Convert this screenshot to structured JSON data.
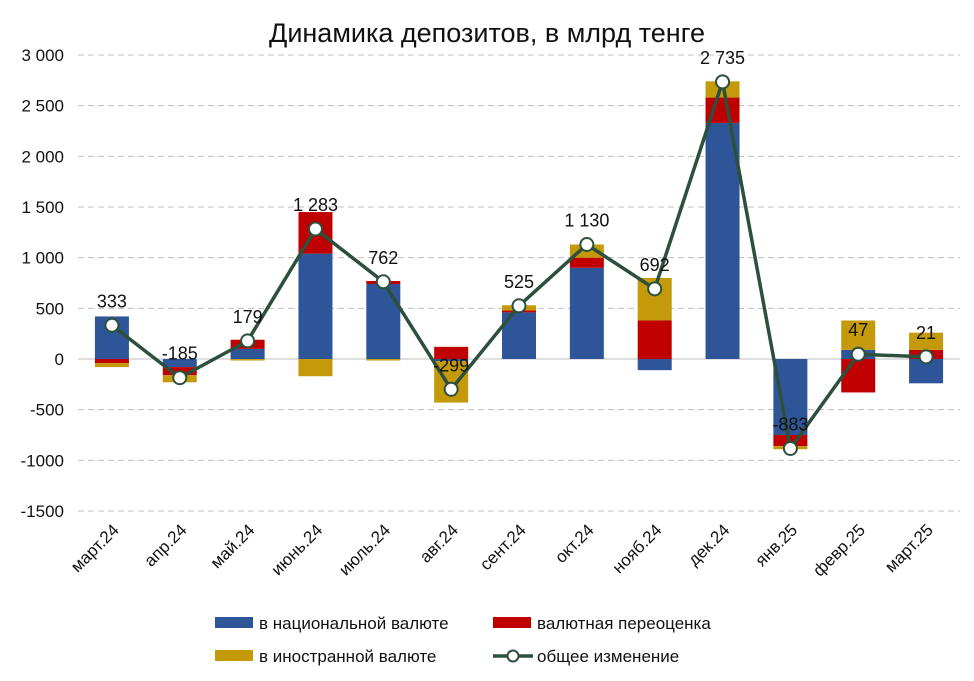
{
  "chart_data": {
    "type": "bar",
    "title": "Динамика депозитов, в млрд тенге",
    "xlabel": "",
    "ylabel": "",
    "ylim": [
      -1500,
      3000
    ],
    "yticks": [
      3000,
      2500,
      2000,
      1500,
      1000,
      500,
      0,
      -500,
      -1000,
      -1500
    ],
    "ytick_labels": [
      "3 000",
      "2 500",
      "2 000",
      "1 500",
      "1 000",
      "500",
      "0",
      "-500",
      "-1000",
      "-1500"
    ],
    "grid": true,
    "legend_position": "bottom",
    "categories": [
      "март.24",
      "апр.24",
      "май.24",
      "июнь.24",
      "июль.24",
      "авг.24",
      "сент.24",
      "окт.24",
      "нояб.24",
      "дек.24",
      "янв.25",
      "февр.25",
      "март.25"
    ],
    "series": [
      {
        "name": "в национальной валюте",
        "type": "bar",
        "color": "#2E5597",
        "values": [
          420,
          -80,
          100,
          1040,
          740,
          -20,
          460,
          900,
          -110,
          2330,
          -750,
          90,
          -240
        ]
      },
      {
        "name": "валютная переоценка",
        "type": "bar",
        "color": "#C00000",
        "values": [
          -40,
          -80,
          90,
          410,
          30,
          120,
          20,
          100,
          380,
          250,
          -110,
          -330,
          90
        ]
      },
      {
        "name": "в иностранной валюте",
        "type": "bar",
        "color": "#C49A0B",
        "values": [
          -40,
          -70,
          -15,
          -170,
          -15,
          -410,
          50,
          130,
          420,
          160,
          -30,
          290,
          170
        ]
      },
      {
        "name": "общее изменение",
        "type": "line",
        "color": "#2D503C",
        "values": [
          333,
          -185,
          179,
          1283,
          762,
          -299,
          525,
          1130,
          692,
          2735,
          -883,
          47,
          21
        ]
      }
    ],
    "data_labels": [
      "333",
      "-185",
      "179",
      "1 283",
      "762",
      "-299",
      "525",
      "1 130",
      "692",
      "2 735",
      "-883",
      "47",
      "21"
    ]
  }
}
